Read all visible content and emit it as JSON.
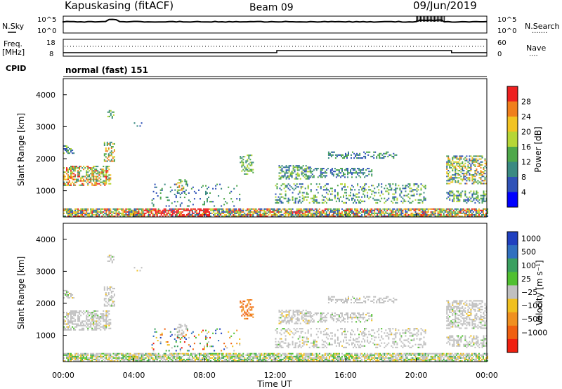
{
  "header": {
    "station": "Kapuskasing (fitACF)",
    "beam": "Beam 09",
    "date": "09/Jun/2019"
  },
  "top_panel": {
    "left_labels": [
      "N.Sky",
      "Freq.",
      "[MHz]",
      "CPID"
    ],
    "right_labels": [
      "N.Search",
      "Nave"
    ],
    "noise_ticks": [
      "10^5",
      "10^0"
    ],
    "freq_ticks": [
      "18",
      "8"
    ],
    "nave_ticks": [
      "60",
      "0"
    ],
    "cpid_text": "normal (fast) 151"
  },
  "chart_data": [
    {
      "type": "heatmap",
      "name": "power",
      "xlabel": "",
      "ylabel": "Slant Range [km]",
      "xlim": [
        0,
        24
      ],
      "ylim": [
        180,
        4500
      ],
      "y_ticks": [
        "1000",
        "2000",
        "3000",
        "4000"
      ],
      "x_tick_labels": [
        "00:00",
        "04:00",
        "08:00",
        "12:00",
        "16:00",
        "20:00",
        "00:00"
      ],
      "colorbar": {
        "label": "Power [dB]",
        "ticks": [
          "4",
          "8",
          "12",
          "16",
          "20",
          "24",
          "28"
        ],
        "colors": [
          "#0000ff",
          "#2f52b8",
          "#3a8a82",
          "#4ea84a",
          "#b6d636",
          "#f2c322",
          "#f07f1c",
          "#ee2020"
        ]
      }
    },
    {
      "type": "heatmap",
      "name": "velocity",
      "xlabel": "Time UT",
      "ylabel": "Slant Range [km]",
      "xlim": [
        0,
        24
      ],
      "ylim": [
        180,
        4500
      ],
      "y_ticks": [
        "1000",
        "2000",
        "3000",
        "4000"
      ],
      "x_tick_labels": [
        "00:00",
        "04:00",
        "08:00",
        "12:00",
        "16:00",
        "20:00",
        "00:00"
      ],
      "colorbar": {
        "label": "Velocity [m s⁻¹]",
        "ticks": [
          "1000",
          "500",
          "100",
          "25",
          "−25",
          "−100",
          "−500",
          "−1000"
        ],
        "colors": [
          "#2040c0",
          "#3070c0",
          "#3aa060",
          "#50c030",
          "#c0c0c0",
          "#f0c020",
          "#f09020",
          "#f06010",
          "#f02010"
        ]
      }
    }
  ]
}
